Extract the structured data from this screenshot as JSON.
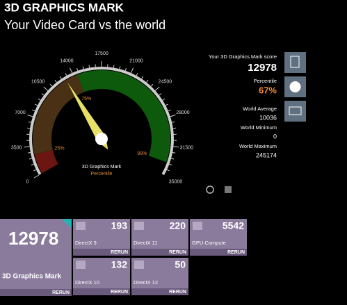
{
  "header": {
    "title": "3D GRAPHICS MARK",
    "subtitle": "Your Video Card vs the world"
  },
  "gauge": {
    "ticks": [
      0,
      3500,
      7000,
      10500,
      14000,
      17500,
      21000,
      24500,
      28000,
      31500,
      35000
    ],
    "bands": [
      {
        "label": "25%",
        "end": 2500,
        "color": "#6b1610"
      },
      {
        "label": "75%",
        "end": 14500,
        "color": "#4a3116"
      },
      {
        "label": "99%",
        "end": 33500,
        "color": "#0d5a0d"
      }
    ],
    "label": "3D Graphics Mark",
    "sublabel": "Percentile"
  },
  "stats": {
    "score_label": "Your 3D Graphics Mark score",
    "score": 12978,
    "percentile_label": "Percentile",
    "percentile": "67%",
    "rows": [
      {
        "label": "World Average",
        "value": 10036
      },
      {
        "label": "World Minimum",
        "value": 0
      },
      {
        "label": "World Maximum",
        "value": 245174
      }
    ]
  },
  "tiles": [
    {
      "value": 12978,
      "name": "3D Graphics Mark",
      "action": "RERUN"
    },
    {
      "value": 193,
      "name": "DirectX 9",
      "action": "RERUN"
    },
    {
      "value": 220,
      "name": "DirectX 11",
      "action": "RERUN"
    },
    {
      "value": 5542,
      "name": "GPU Compute",
      "action": "RERUN"
    },
    {
      "value": 132,
      "name": "DirectX 10",
      "action": "RERUN"
    },
    {
      "value": 50,
      "name": "DirectX 12",
      "action": "RERUN"
    }
  ]
}
